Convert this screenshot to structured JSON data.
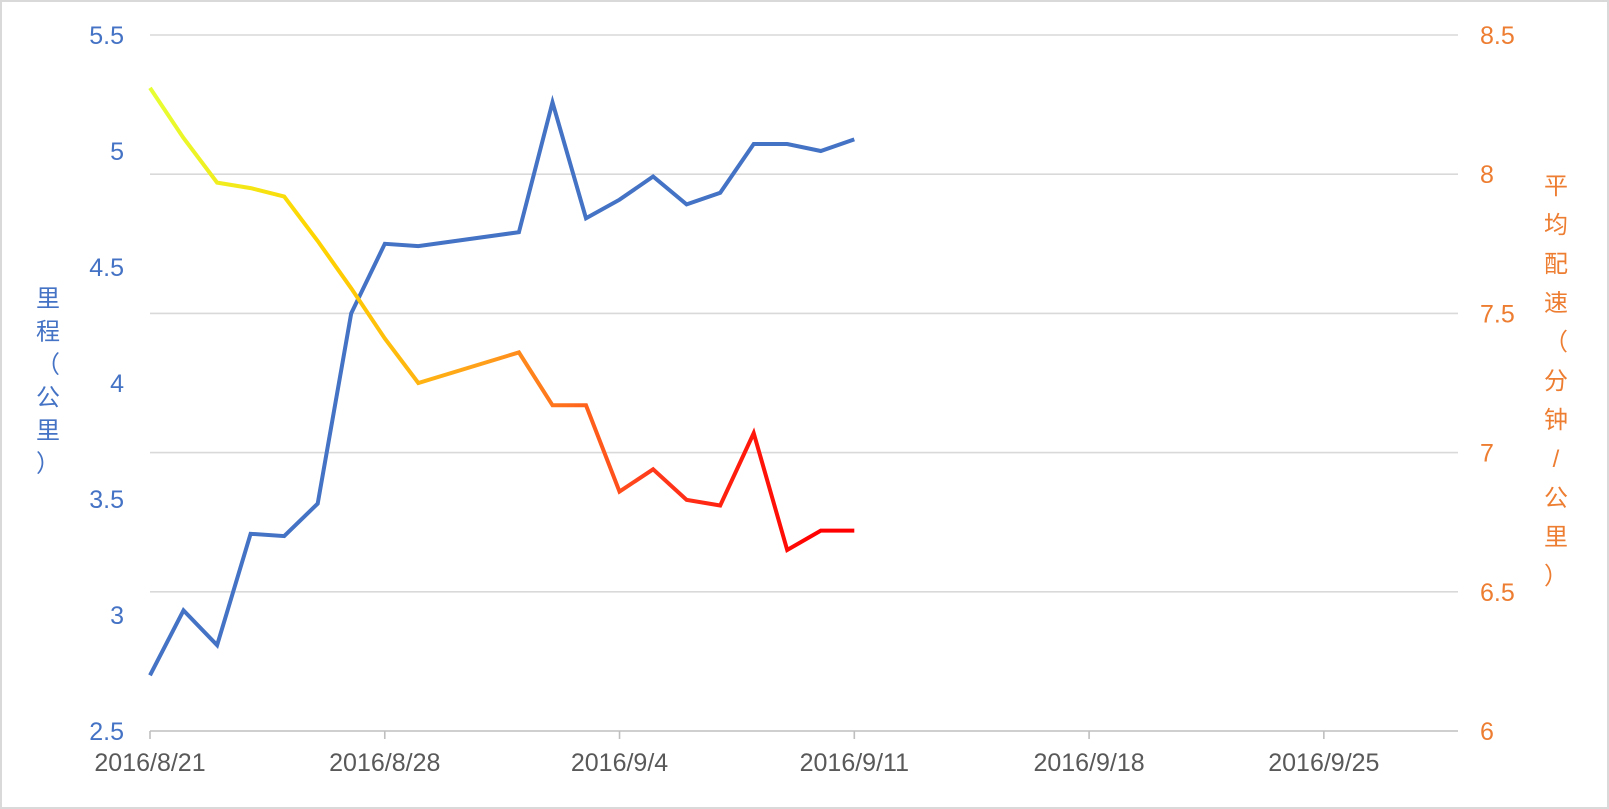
{
  "colors": {
    "left_axis": "#4472c4",
    "right_axis": "#ed7d31",
    "x_tick": "#595959",
    "grid": "#d9d9d9",
    "pace_gradient": [
      "#e6ff33",
      "#ffd400",
      "#ff9f1c",
      "#ff3a1c",
      "#ff0000"
    ]
  },
  "chart_data": {
    "type": "line",
    "title": "",
    "grid": true,
    "legend": "none",
    "x_ticks": [
      "2016/8/21",
      "2016/8/28",
      "2016/9/4",
      "2016/9/11",
      "2016/9/18",
      "2016/9/25"
    ],
    "x_range": [
      "2016/8/21",
      "2016/9/29"
    ],
    "left_axis": {
      "label": "里程（公里）",
      "ylim": [
        2.5,
        5.5
      ],
      "ticks": [
        "2.5",
        "3",
        "3.5",
        "4",
        "4.5",
        "5",
        "5.5"
      ]
    },
    "right_axis": {
      "label": "平均配速（分钟/公里）",
      "ylim": [
        6,
        8.5
      ],
      "ticks": [
        "6",
        "6.5",
        "7",
        "7.5",
        "8",
        "8.5"
      ]
    },
    "series": [
      {
        "axis": "left",
        "points": [
          [
            "2016/8/21",
            2.74
          ],
          [
            "2016/8/22",
            3.02
          ],
          [
            "2016/8/23",
            2.87
          ],
          [
            "2016/8/24",
            3.35
          ],
          [
            "2016/8/25",
            3.34
          ],
          [
            "2016/8/26",
            3.48
          ],
          [
            "2016/8/27",
            4.3
          ],
          [
            "2016/8/28",
            4.6
          ],
          [
            "2016/8/29",
            4.59
          ],
          [
            "2016/9/1",
            4.65
          ],
          [
            "2016/9/2",
            5.21
          ],
          [
            "2016/9/3",
            4.71
          ],
          [
            "2016/9/4",
            4.79
          ],
          [
            "2016/9/5",
            4.89
          ],
          [
            "2016/9/6",
            4.77
          ],
          [
            "2016/9/7",
            4.82
          ],
          [
            "2016/9/8",
            5.03
          ],
          [
            "2016/9/9",
            5.03
          ],
          [
            "2016/9/10",
            5.0
          ],
          [
            "2016/9/11",
            5.05
          ]
        ]
      },
      {
        "axis": "right",
        "points": [
          [
            "2016/8/21",
            8.31
          ],
          [
            "2016/8/22",
            8.13
          ],
          [
            "2016/8/23",
            7.97
          ],
          [
            "2016/8/24",
            7.95
          ],
          [
            "2016/8/25",
            7.92
          ],
          [
            "2016/8/26",
            7.76
          ],
          [
            "2016/8/27",
            7.59
          ],
          [
            "2016/8/28",
            7.41
          ],
          [
            "2016/8/29",
            7.25
          ],
          [
            "2016/9/1",
            7.36
          ],
          [
            "2016/9/2",
            7.17
          ],
          [
            "2016/9/3",
            7.17
          ],
          [
            "2016/9/4",
            6.86
          ],
          [
            "2016/9/5",
            6.94
          ],
          [
            "2016/9/6",
            6.83
          ],
          [
            "2016/9/7",
            6.81
          ],
          [
            "2016/9/8",
            7.07
          ],
          [
            "2016/9/9",
            6.65
          ],
          [
            "2016/9/10",
            6.72
          ],
          [
            "2016/9/11",
            6.72
          ]
        ]
      }
    ]
  }
}
